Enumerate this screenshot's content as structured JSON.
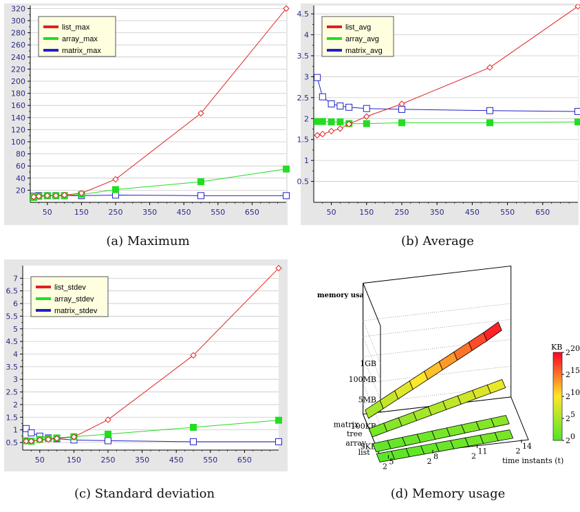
{
  "captions": {
    "a": "(a) Maximum",
    "b": "(b) Average",
    "c": "(c) Standard deviation",
    "d": "(d) Memory usage"
  },
  "colors": {
    "list": "#e02020",
    "array": "#22dd22",
    "matrix": "#2020c8",
    "plot_bg": "#ffffff",
    "panel_bg": "#e6e6e6",
    "legend_bg": "#ffffe0"
  },
  "chart_data": [
    {
      "type": "line",
      "id": "max",
      "x_ticks": [
        50,
        150,
        250,
        350,
        450,
        550,
        650
      ],
      "y_ticks": [
        20,
        40,
        60,
        80,
        100,
        120,
        140,
        160,
        180,
        200,
        220,
        240,
        260,
        280,
        300,
        320
      ],
      "xlim": [
        0,
        750
      ],
      "ylim": [
        0,
        325
      ],
      "legend": "top-left",
      "series": [
        {
          "name": "list_max",
          "marker": "diamond",
          "x": [
            10,
            25,
            50,
            75,
            100,
            150,
            250,
            500,
            750
          ],
          "y": [
            9,
            10,
            11,
            11,
            12,
            15,
            38,
            147,
            320
          ]
        },
        {
          "name": "array_max",
          "marker": "filled-square",
          "x": [
            10,
            25,
            50,
            75,
            100,
            150,
            250,
            500,
            750
          ],
          "y": [
            8,
            10,
            11,
            11,
            11,
            13,
            21,
            34,
            55
          ]
        },
        {
          "name": "matrix_max",
          "marker": "open-square",
          "x": [
            10,
            25,
            50,
            75,
            100,
            150,
            250,
            500,
            750
          ],
          "y": [
            10,
            11,
            11,
            11,
            11,
            11,
            12,
            11,
            11
          ]
        }
      ]
    },
    {
      "type": "line",
      "id": "avg",
      "x_ticks": [
        50,
        150,
        250,
        350,
        450,
        550,
        650
      ],
      "y_ticks": [
        0.5,
        1,
        1.5,
        2,
        2.5,
        3,
        3.5,
        4,
        4.5
      ],
      "xlim": [
        0,
        750
      ],
      "ylim": [
        0,
        4.7
      ],
      "legend": "top-left",
      "series": [
        {
          "name": "list_avg",
          "marker": "diamond",
          "x": [
            10,
            25,
            50,
            75,
            100,
            150,
            250,
            500,
            750
          ],
          "y": [
            1.6,
            1.63,
            1.7,
            1.76,
            1.87,
            2.05,
            2.35,
            3.22,
            4.68
          ]
        },
        {
          "name": "array_avg",
          "marker": "filled-square",
          "x": [
            10,
            25,
            50,
            75,
            100,
            150,
            250,
            500,
            750
          ],
          "y": [
            1.93,
            1.93,
            1.92,
            1.92,
            1.88,
            1.88,
            1.9,
            1.9,
            1.92
          ]
        },
        {
          "name": "matrix_avg",
          "marker": "open-square",
          "x": [
            10,
            25,
            50,
            75,
            100,
            150,
            250,
            500,
            750
          ],
          "y": [
            2.98,
            2.52,
            2.35,
            2.3,
            2.27,
            2.24,
            2.22,
            2.19,
            2.17
          ]
        }
      ]
    },
    {
      "type": "line",
      "id": "stdev",
      "x_ticks": [
        50,
        150,
        250,
        350,
        450,
        550,
        650
      ],
      "y_ticks": [
        0.5,
        1,
        1.5,
        2,
        2.5,
        3,
        3.5,
        4,
        4.5,
        5,
        5.5,
        6,
        6.5,
        7
      ],
      "xlim": [
        0,
        750
      ],
      "ylim": [
        0.2,
        7.5
      ],
      "legend": "top-left",
      "series": [
        {
          "name": "list_stdev",
          "marker": "diamond",
          "x": [
            10,
            25,
            50,
            75,
            100,
            150,
            250,
            500,
            750
          ],
          "y": [
            0.55,
            0.55,
            0.6,
            0.62,
            0.66,
            0.72,
            1.4,
            3.95,
            7.4
          ]
        },
        {
          "name": "array_stdev",
          "marker": "filled-square",
          "x": [
            10,
            25,
            50,
            75,
            100,
            150,
            250,
            500,
            750
          ],
          "y": [
            0.57,
            0.55,
            0.62,
            0.66,
            0.68,
            0.73,
            0.83,
            1.1,
            1.38
          ]
        },
        {
          "name": "matrix_stdev",
          "marker": "open-square",
          "x": [
            10,
            25,
            50,
            75,
            100,
            150,
            250,
            500,
            750
          ],
          "y": [
            1.05,
            0.88,
            0.75,
            0.68,
            0.65,
            0.6,
            0.57,
            0.53,
            0.53
          ]
        }
      ]
    },
    {
      "type": "area",
      "id": "memory",
      "title": "memory usage",
      "structures": [
        "list",
        "array",
        "tree",
        "matrix"
      ],
      "z_labels": [
        "5KB",
        "100KB",
        "5MB",
        "100MB",
        "1GB"
      ],
      "x_labels": [
        {
          "base": "2",
          "exp": "5"
        },
        {
          "base": "2",
          "exp": "8"
        },
        {
          "base": "2",
          "exp": "11"
        },
        {
          "base": "2",
          "exp": "14"
        }
      ],
      "x_axis_label": "time instants (t)",
      "colorbar_unit": "KB",
      "colorbar_ticks": [
        {
          "base": "2",
          "exp": "0"
        },
        {
          "base": "2",
          "exp": "5"
        },
        {
          "base": "2",
          "exp": "10"
        },
        {
          "base": "2",
          "exp": "15"
        },
        {
          "base": "2",
          "exp": "20"
        }
      ],
      "log2_kb": {
        "list": [
          0.6,
          0.8,
          1.0,
          1.2,
          1.4,
          1.6,
          1.8,
          2.0,
          2.2,
          2.4
        ],
        "array": [
          0.8,
          1.1,
          1.4,
          1.7,
          2.0,
          2.3,
          2.6,
          2.9,
          3.2,
          3.5
        ],
        "tree": [
          2.0,
          2.8,
          3.6,
          4.4,
          5.2,
          6.0,
          6.8,
          7.6,
          8.4,
          9.2
        ],
        "matrix": [
          4.0,
          5.7,
          7.4,
          9.1,
          10.8,
          12.5,
          14.2,
          15.9,
          17.6,
          19.5
        ]
      }
    }
  ]
}
